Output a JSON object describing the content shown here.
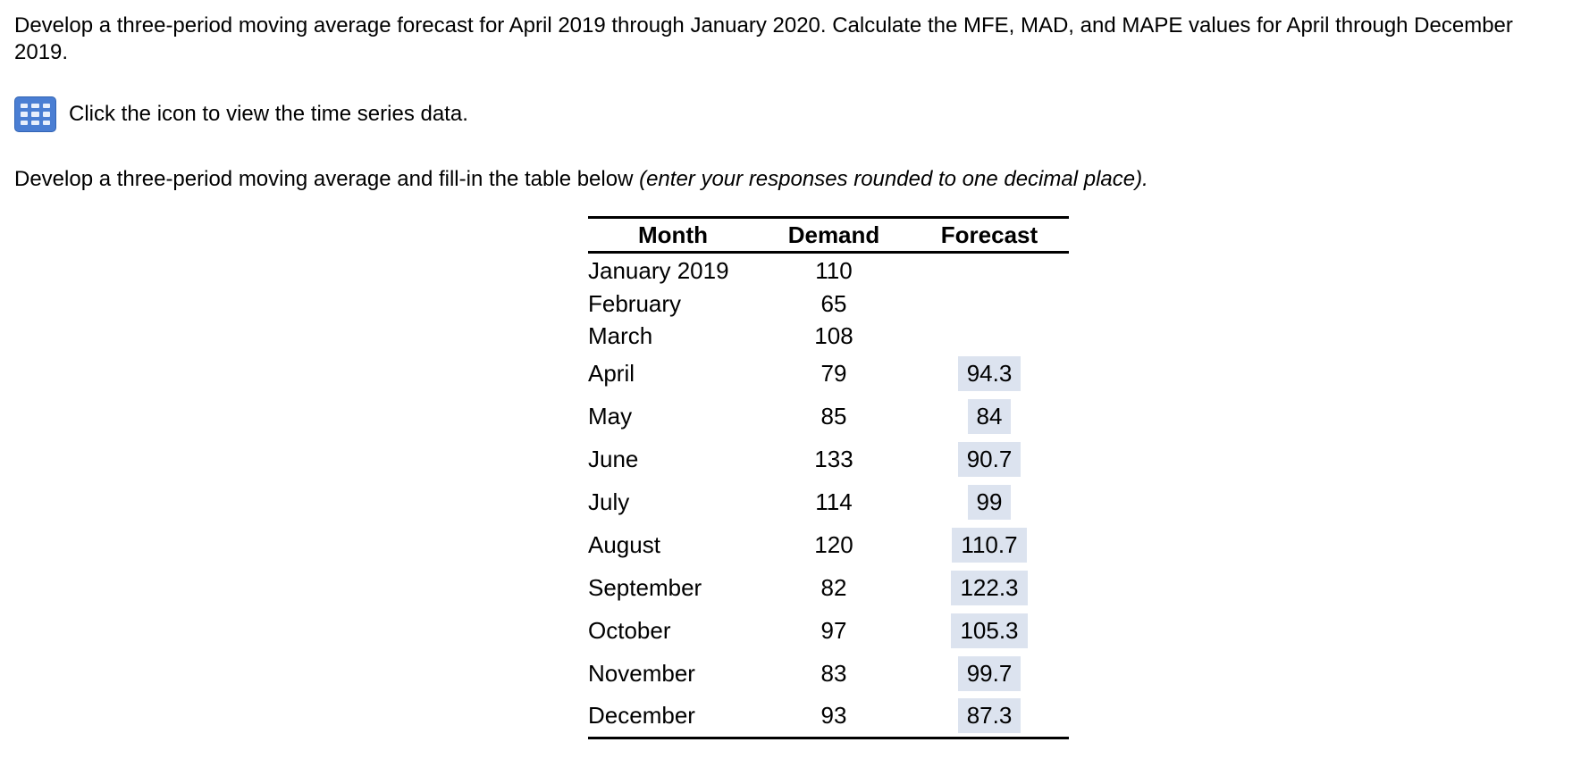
{
  "question": {
    "text": "Develop a three-period moving average forecast for April 2019 through January 2020. Calculate the MFE, MAD, and MAPE values for April through December 2019."
  },
  "icon_row": {
    "icon": "table-grid-icon",
    "label": "Click the icon to view the time series data."
  },
  "instruction": {
    "text": "Develop a three-period moving average and fill-in the table below ",
    "note": "(enter your responses rounded to one decimal place)."
  },
  "table": {
    "headers": {
      "month": "Month",
      "demand": "Demand",
      "forecast": "Forecast"
    },
    "rows": [
      {
        "month": "January 2019",
        "demand": "110",
        "forecast": ""
      },
      {
        "month": "February",
        "demand": "65",
        "forecast": ""
      },
      {
        "month": "March",
        "demand": "108",
        "forecast": ""
      },
      {
        "month": "April",
        "demand": "79",
        "forecast": "94.3"
      },
      {
        "month": "May",
        "demand": "85",
        "forecast": "84"
      },
      {
        "month": "June",
        "demand": "133",
        "forecast": "90.7"
      },
      {
        "month": "July",
        "demand": "114",
        "forecast": "99"
      },
      {
        "month": "August",
        "demand": "120",
        "forecast": "110.7"
      },
      {
        "month": "September",
        "demand": "82",
        "forecast": "122.3"
      },
      {
        "month": "October",
        "demand": "97",
        "forecast": "105.3"
      },
      {
        "month": "November",
        "demand": "83",
        "forecast": "99.7"
      },
      {
        "month": "December",
        "demand": "93",
        "forecast": "87.3"
      }
    ],
    "highlight_color": "#dce3ef"
  },
  "colors": {
    "icon_blue": "#4a7ed3",
    "icon_cell": "#e8effc",
    "text": "#000000",
    "background": "#ffffff"
  }
}
